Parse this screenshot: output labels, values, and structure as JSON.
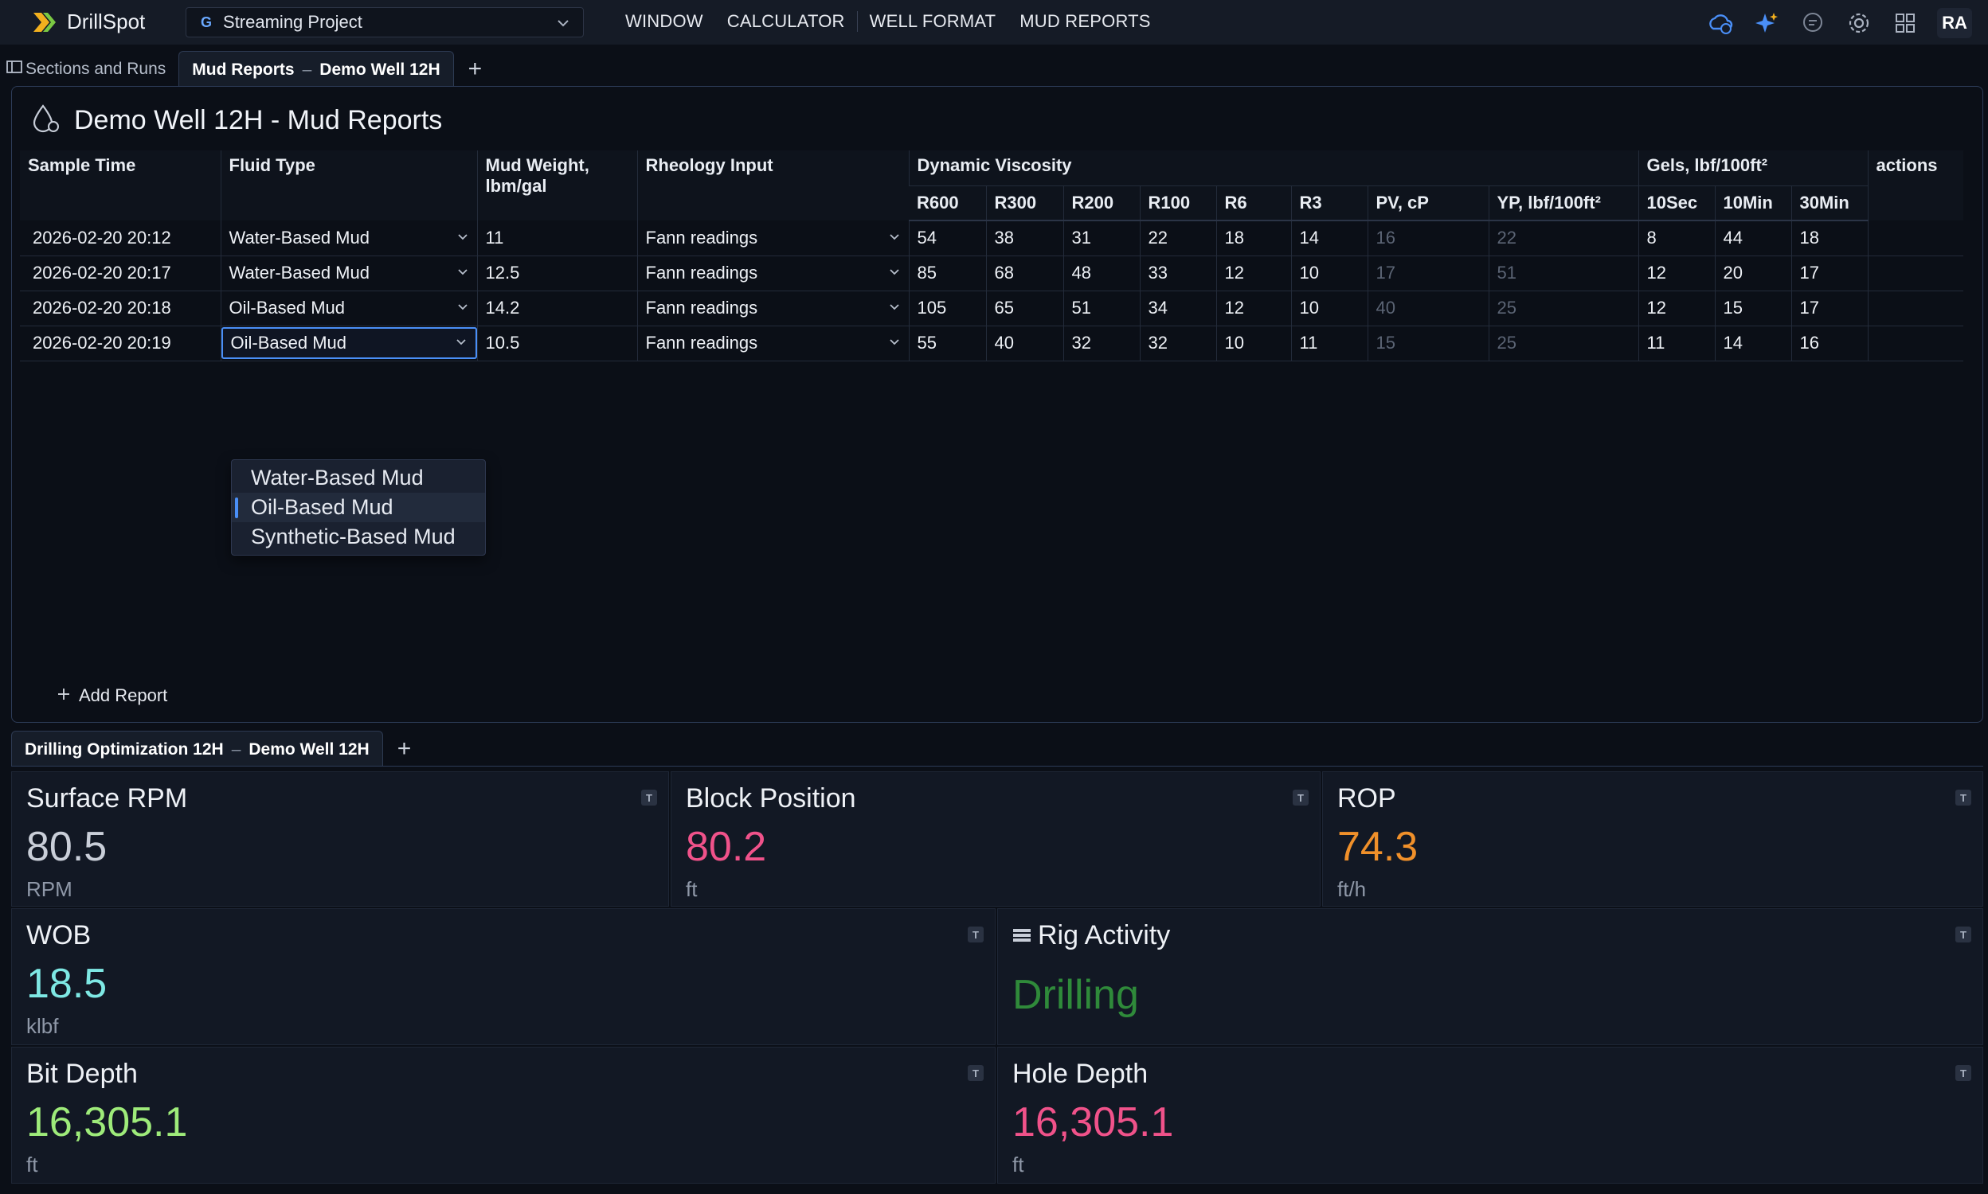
{
  "app": {
    "name": "DrillSpot",
    "project": "Streaming Project",
    "project_prefix": "G",
    "nav": [
      "WINDOW",
      "CALCULATOR",
      "WELL FORMAT",
      "MUD REPORTS"
    ],
    "user_initials": "RA"
  },
  "top_tabs": {
    "sections": "Sections and Runs",
    "active_left": "Mud Reports",
    "active_sep": "–",
    "active_right": "Demo Well 12H",
    "add": "+"
  },
  "mud": {
    "title": "Demo Well 12H - Mud Reports",
    "headers": {
      "sample_time": "Sample Time",
      "fluid_type": "Fluid Type",
      "mud_weight": "Mud Weight, lbm/gal",
      "rheology": "Rheology Input",
      "dynamic_viscosity": "Dynamic Viscosity",
      "gels": "Gels, lbf/100ft²",
      "actions": "actions",
      "sub": [
        "R600",
        "R300",
        "R200",
        "R100",
        "R6",
        "R3",
        "PV, cP",
        "YP, lbf/100ft²",
        "10Sec",
        "10Min",
        "30Min"
      ]
    },
    "rows": [
      {
        "time": "2026-02-20 20:12",
        "fluid": "Water-Based Mud",
        "weight": "11",
        "rheology": "Fann readings",
        "r600": "54",
        "r300": "38",
        "r200": "31",
        "r100": "22",
        "r6": "18",
        "r3": "14",
        "pv": "16",
        "yp": "22",
        "g10s": "8",
        "g10m": "44",
        "g30m": "18"
      },
      {
        "time": "2026-02-20 20:17",
        "fluid": "Water-Based Mud",
        "weight": "12.5",
        "rheology": "Fann readings",
        "r600": "85",
        "r300": "68",
        "r200": "48",
        "r100": "33",
        "r6": "12",
        "r3": "10",
        "pv": "17",
        "yp": "51",
        "g10s": "12",
        "g10m": "20",
        "g30m": "17"
      },
      {
        "time": "2026-02-20 20:18",
        "fluid": "Oil-Based Mud",
        "weight": "14.2",
        "rheology": "Fann readings",
        "r600": "105",
        "r300": "65",
        "r200": "51",
        "r100": "34",
        "r6": "12",
        "r3": "10",
        "pv": "40",
        "yp": "25",
        "g10s": "12",
        "g10m": "15",
        "g30m": "17"
      },
      {
        "time": "2026-02-20 20:19",
        "fluid": "Oil-Based Mud",
        "weight": "10.5",
        "rheology": "Fann readings",
        "r600": "55",
        "r300": "40",
        "r200": "32",
        "r100": "32",
        "r6": "10",
        "r3": "11",
        "pv": "15",
        "yp": "25",
        "g10s": "11",
        "g10m": "14",
        "g30m": "16"
      }
    ],
    "dropdown_options": [
      "Water-Based Mud",
      "Oil-Based Mud",
      "Synthetic-Based Mud"
    ],
    "dropdown_selected": "Oil-Based Mud",
    "add_report": "Add Report"
  },
  "bottom_tabs": {
    "active_left": "Drilling Optimization 12H",
    "active_sep": "–",
    "active_right": "Demo Well 12H",
    "add": "+"
  },
  "cards": {
    "surface_rpm": {
      "title": "Surface RPM",
      "value": "80.5",
      "unit": "RPM",
      "color": "#c9ced8"
    },
    "block_position": {
      "title": "Block Position",
      "value": "80.2",
      "unit": "ft",
      "color": "#f0528a"
    },
    "rop": {
      "title": "ROP",
      "value": "74.3",
      "unit": "ft/h",
      "color": "#f0902a"
    },
    "wob": {
      "title": "WOB",
      "value": "18.5",
      "unit": "klbf",
      "color": "#7ee8e4"
    },
    "rig_activity": {
      "title": "Rig Activity",
      "value": "Drilling",
      "color": "#2f8a3a"
    },
    "bit_depth": {
      "title": "Bit Depth",
      "value": "16,305.1",
      "unit": "ft",
      "color": "#9eeb7a"
    },
    "hole_depth": {
      "title": "Hole Depth",
      "value": "16,305.1",
      "unit": "ft",
      "color": "#f0528a"
    },
    "badge": "T"
  }
}
